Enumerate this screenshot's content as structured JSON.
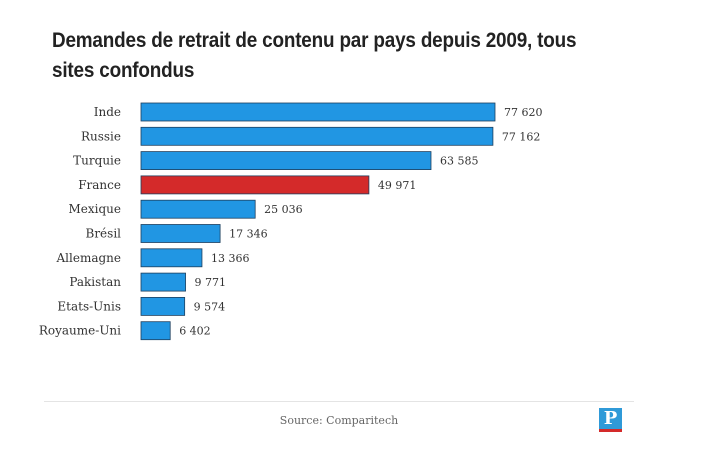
{
  "chart_data": {
    "type": "bar",
    "orientation": "horizontal",
    "title": "Demandes de retrait de contenu par pays depuis 2009, tous sites confondus",
    "categories": [
      "Inde",
      "Russie",
      "Turquie",
      "France",
      "Mexique",
      "Brésil",
      "Allemagne",
      "Pakistan",
      "Etats-Unis",
      "Royaume-Uni"
    ],
    "values": [
      77620,
      77162,
      63585,
      49971,
      25036,
      17346,
      13366,
      9771,
      9574,
      6402
    ],
    "value_labels": [
      "77 620",
      "77 162",
      "63 585",
      "49 971",
      "25 036",
      "17 346",
      "13 366",
      "9 771",
      "9 574",
      "6 402"
    ],
    "highlight_category": "France",
    "colors": {
      "default": "#2196e3",
      "highlight": "#d42a2a",
      "stroke": "#1d3f5e"
    },
    "xlim": [
      0,
      77620
    ],
    "grid": false,
    "legend": "none"
  },
  "source": "Source: Comparitech",
  "logo": {
    "letter": "P",
    "icon": "le-parisien-logo"
  }
}
